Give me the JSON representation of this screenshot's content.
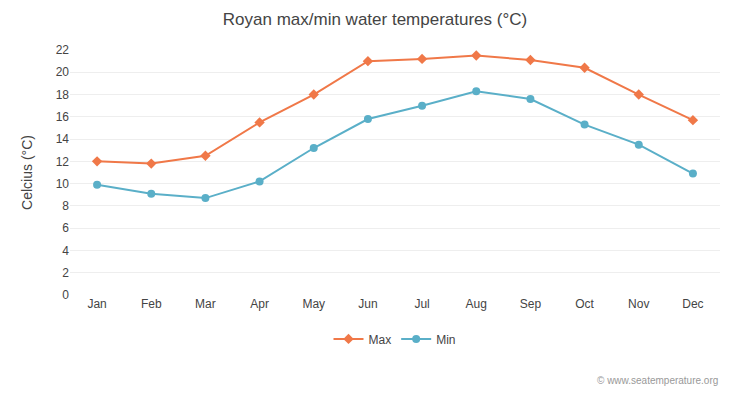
{
  "chart_data": {
    "type": "line",
    "title": "Royan max/min water temperatures (°C)",
    "ylabel": "Celcius (°C)",
    "categories": [
      "Jan",
      "Feb",
      "Mar",
      "Apr",
      "May",
      "Jun",
      "Jul",
      "Aug",
      "Sep",
      "Oct",
      "Nov",
      "Dec"
    ],
    "series": [
      {
        "name": "Max",
        "color": "#f07848",
        "marker": "diamond",
        "values": [
          12.0,
          11.8,
          12.5,
          15.5,
          18.0,
          21.0,
          21.2,
          21.5,
          21.1,
          20.4,
          18.0,
          15.7
        ]
      },
      {
        "name": "Min",
        "color": "#5aafc8",
        "marker": "circle",
        "values": [
          9.9,
          9.1,
          8.7,
          10.2,
          13.2,
          15.8,
          17.0,
          18.3,
          17.6,
          15.3,
          13.5,
          10.9
        ]
      }
    ],
    "ylim": [
      0,
      22
    ],
    "yticks": [
      0,
      2,
      4,
      6,
      8,
      10,
      12,
      14,
      16,
      18,
      20,
      22
    ],
    "grid": true,
    "legend": "bottom",
    "annotations": [
      "© www.seatemperature.org"
    ]
  }
}
